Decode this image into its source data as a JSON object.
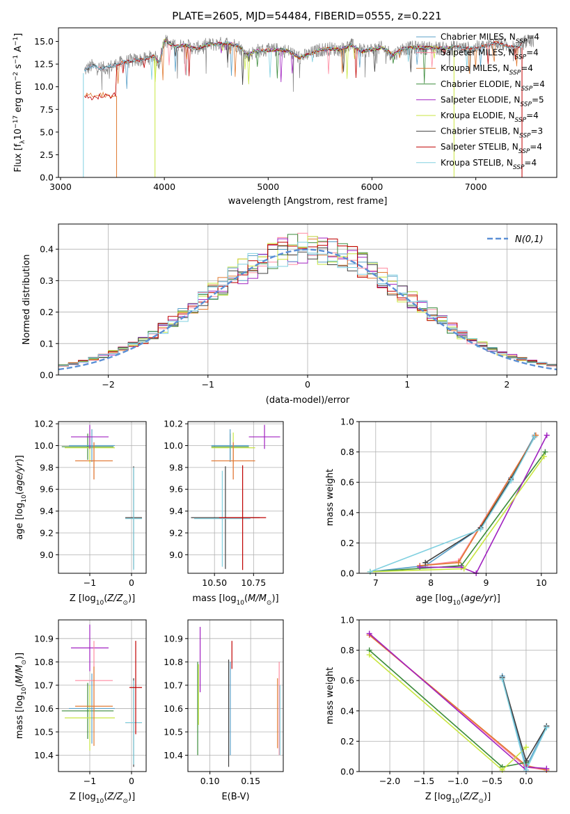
{
  "title": "PLATE=2605, MJD=54484, FIBERID=0555, z=0.221",
  "chart_data": [
    {
      "id": "spectrum",
      "type": "line",
      "xlabel": "wavelength [Angstrom, rest frame]",
      "ylabel": "Flux [f_λ 10^-17 erg cm^-2 s^-1 A^-1]",
      "xlim": [
        2980,
        7780
      ],
      "ylim": [
        0,
        16.5
      ],
      "xticks": [
        3000,
        4000,
        5000,
        6000,
        7000
      ],
      "yticks": [
        0.0,
        2.5,
        5.0,
        7.5,
        10.0,
        12.5,
        15.0
      ],
      "grid": false,
      "legend_position": "top-right",
      "data_color": "#808080",
      "data": {
        "x": [
          3200,
          3230,
          3300,
          3400,
          3500,
          3600,
          3700,
          3800,
          3900,
          3950,
          4000,
          4100,
          4200,
          4300,
          4400,
          4500,
          4600,
          4700,
          4800,
          4900,
          5000,
          5100,
          5200,
          5300,
          5400,
          5500,
          5600,
          5700,
          5800,
          5900,
          6000,
          6100,
          6200,
          6300,
          6400,
          6500,
          6600,
          6700,
          6800,
          6900,
          7000,
          7100,
          7200,
          7300,
          7400,
          7500,
          7550
        ],
        "y": [
          0,
          11.8,
          12.3,
          12.0,
          12.3,
          12.7,
          12.9,
          13.0,
          13.4,
          12.6,
          15.2,
          14.4,
          14.6,
          14.2,
          14.6,
          14.7,
          14.8,
          14.6,
          13.5,
          14.0,
          14.0,
          14.1,
          13.9,
          13.2,
          13.6,
          14.1,
          14.2,
          14.1,
          14.6,
          13.9,
          14.1,
          14.3,
          13.5,
          14.2,
          14.3,
          14.3,
          14.3,
          14.2,
          14.4,
          14.2,
          14.3,
          14.5,
          14.9,
          14.5,
          14.3,
          15.2,
          15.0
        ]
      },
      "series": [
        {
          "name": "Chabrier MILES, N_SSP=4",
          "color": "#5aa0c8"
        },
        {
          "name": "Salpeter MILES, N_SSP=4",
          "color": "#ff8aa0"
        },
        {
          "name": "Kroupa MILES, N_SSP=4",
          "color": "#e07a30"
        },
        {
          "name": "Chabrier ELODIE, N_SSP=4",
          "color": "#3a8a3a"
        },
        {
          "name": "Salpeter ELODIE, N_SSP=5",
          "color": "#a020c0"
        },
        {
          "name": "Kroupa ELODIE, N_SSP=4",
          "color": "#c8e640"
        },
        {
          "name": "Chabrier STELIB, N_SSP=3",
          "color": "#404040"
        },
        {
          "name": "Salpeter STELIB, N_SSP=4",
          "color": "#c00000"
        },
        {
          "name": "Kroupa STELIB, N_SSP=4",
          "color": "#80d0e0"
        }
      ],
      "annotations": {
        "miles_cutoff": 3540,
        "elodie_range": [
          3900,
          6800
        ],
        "stelib_range": [
          3200,
          7450
        ]
      }
    },
    {
      "id": "residuals",
      "type": "line",
      "xlabel": "(data-model)/error",
      "ylabel": "Normed distribution",
      "xlim": [
        -2.5,
        2.5
      ],
      "ylim": [
        0,
        0.48
      ],
      "xticks": [
        -2,
        -1,
        0,
        1,
        2
      ],
      "yticks": [
        0.0,
        0.1,
        0.2,
        0.3,
        0.4
      ],
      "grid": true,
      "legend_position": "top-right",
      "legend_label": "N(0,1)",
      "gauss_color": "#5b8fd6",
      "bin_width": 0.1,
      "series_colors": [
        "#5aa0c8",
        "#ff8aa0",
        "#e07a30",
        "#3a8a3a",
        "#a020c0",
        "#c8e640",
        "#404040",
        "#c00000",
        "#80d0e0"
      ]
    },
    {
      "id": "age-vs-Z",
      "type": "scatter",
      "xlabel": "Z [log10(Z/Z_sun)]",
      "ylabel": "age [log10(age/yr)]",
      "xlim": [
        -1.75,
        0.35
      ],
      "ylim": [
        8.83,
        10.22
      ],
      "xticks": [
        -1,
        0
      ],
      "yticks": [
        9.0,
        9.2,
        9.4,
        9.6,
        9.8,
        10.0,
        10.2
      ],
      "grid": true,
      "points": [
        {
          "x": -1.05,
          "y": 9.99,
          "xerr": 0.62,
          "yerr": 0.12,
          "c": "#3a8a3a"
        },
        {
          "x": -1.0,
          "y": 9.98,
          "xerr": 0.6,
          "yerr": 0.14,
          "c": "#c8e640"
        },
        {
          "x": -0.95,
          "y": 10.0,
          "xerr": 0.55,
          "yerr": 0.15,
          "c": "#5aa0c8"
        },
        {
          "x": -1.0,
          "y": 10.08,
          "xerr": 0.45,
          "yerr": 0.11,
          "c": "#a020c0"
        },
        {
          "x": -0.9,
          "y": 9.86,
          "xerr": 0.45,
          "yerr": 0.17,
          "c": "#ff8aa0"
        },
        {
          "x": -0.9,
          "y": 9.86,
          "xerr": 0.45,
          "yerr": 0.17,
          "c": "#e07a30"
        },
        {
          "x": 0.05,
          "y": 9.34,
          "xerr": 0.2,
          "yerr": 0.47,
          "c": "#404040"
        },
        {
          "x": 0.05,
          "y": 9.33,
          "xerr": 0.2,
          "yerr": 0.47,
          "c": "#80d0e0"
        }
      ]
    },
    {
      "id": "age-vs-mass",
      "type": "scatter",
      "xlabel": "mass [log10(M/M_sun)]",
      "ylabel": "",
      "xlim": [
        10.33,
        10.94
      ],
      "ylim": [
        8.83,
        10.22
      ],
      "xticks": [
        10.5,
        10.75
      ],
      "yticks": [
        9.0,
        9.2,
        9.4,
        9.6,
        9.8,
        10.0,
        10.2
      ],
      "grid": true,
      "points": [
        {
          "x": 10.6,
          "y": 9.99,
          "xerr": 0.12,
          "yerr": 0.12,
          "c": "#3a8a3a"
        },
        {
          "x": 10.62,
          "y": 9.98,
          "xerr": 0.14,
          "yerr": 0.14,
          "c": "#c8e640"
        },
        {
          "x": 10.6,
          "y": 10.0,
          "xerr": 0.12,
          "yerr": 0.15,
          "c": "#5aa0c8"
        },
        {
          "x": 10.82,
          "y": 10.08,
          "xerr": 0.1,
          "yerr": 0.11,
          "c": "#a020c0"
        },
        {
          "x": 10.62,
          "y": 9.86,
          "xerr": 0.14,
          "yerr": 0.17,
          "c": "#ff8aa0"
        },
        {
          "x": 10.62,
          "y": 9.86,
          "xerr": 0.14,
          "yerr": 0.17,
          "c": "#e07a30"
        },
        {
          "x": 10.57,
          "y": 9.34,
          "xerr": 0.22,
          "yerr": 0.47,
          "c": "#404040"
        },
        {
          "x": 10.55,
          "y": 9.33,
          "xerr": 0.18,
          "yerr": 0.44,
          "c": "#80d0e0"
        },
        {
          "x": 10.68,
          "y": 9.34,
          "xerr": 0.15,
          "yerr": 0.48,
          "c": "#c00000"
        }
      ]
    },
    {
      "id": "weight-vs-age",
      "type": "line",
      "xlabel": "age [log10(age/yr)]",
      "ylabel": "mass weight",
      "xlim": [
        6.7,
        10.28
      ],
      "ylim": [
        0,
        1.0
      ],
      "xticks": [
        7,
        8,
        9,
        10
      ],
      "yticks": [
        0.0,
        0.2,
        0.4,
        0.6,
        0.8,
        1.0
      ],
      "grid": true,
      "series": [
        {
          "c": "#5aa0c8",
          "x": [
            6.9,
            7.9,
            8.9,
            9.45,
            9.88
          ],
          "y": [
            0.01,
            0.05,
            0.3,
            0.63,
            0.91
          ]
        },
        {
          "c": "#ff8aa0",
          "x": [
            7.8,
            8.5,
            9.9
          ],
          "y": [
            0.05,
            0.08,
            0.91
          ]
        },
        {
          "c": "#e07a30",
          "x": [
            7.8,
            8.5,
            9.9
          ],
          "y": [
            0.05,
            0.07,
            0.91
          ]
        },
        {
          "c": "#3a8a3a",
          "x": [
            6.9,
            8.55,
            10.07
          ],
          "y": [
            0.01,
            0.05,
            0.8
          ]
        },
        {
          "c": "#a020c0",
          "x": [
            7.8,
            8.55,
            8.82,
            10.1
          ],
          "y": [
            0.04,
            0.04,
            0.0,
            0.91
          ]
        },
        {
          "c": "#c8e640",
          "x": [
            6.9,
            8.6,
            10.05
          ],
          "y": [
            0.01,
            0.03,
            0.77
          ]
        },
        {
          "c": "#404040",
          "x": [
            7.9,
            8.9,
            9.45,
            9.88
          ],
          "y": [
            0.07,
            0.3,
            0.62,
            0.9
          ]
        },
        {
          "c": "#80d0e0",
          "x": [
            6.9,
            8.9,
            9.45,
            9.88
          ],
          "y": [
            0.01,
            0.29,
            0.61,
            0.9
          ]
        }
      ]
    },
    {
      "id": "mass-vs-Z",
      "type": "scatter",
      "xlabel": "Z [log10(Z/Z_sun)]",
      "ylabel": "mass [log10(M/M_sun)]",
      "xlim": [
        -1.75,
        0.35
      ],
      "ylim": [
        10.33,
        10.98
      ],
      "xticks": [
        -1,
        0
      ],
      "yticks": [
        10.4,
        10.5,
        10.6,
        10.7,
        10.8,
        10.9
      ],
      "grid": true,
      "points": [
        {
          "x": -1.05,
          "y": 10.59,
          "xerr": 0.62,
          "yerr": 0.12,
          "c": "#3a8a3a"
        },
        {
          "x": -1.0,
          "y": 10.56,
          "xerr": 0.6,
          "yerr": 0.14,
          "c": "#c8e640"
        },
        {
          "x": -0.95,
          "y": 10.6,
          "xerr": 0.55,
          "yerr": 0.15,
          "c": "#5aa0c8"
        },
        {
          "x": -1.0,
          "y": 10.86,
          "xerr": 0.45,
          "yerr": 0.1,
          "c": "#a020c0"
        },
        {
          "x": -0.9,
          "y": 10.72,
          "xerr": 0.45,
          "yerr": 0.17,
          "c": "#ff8aa0"
        },
        {
          "x": -0.9,
          "y": 10.61,
          "xerr": 0.45,
          "yerr": 0.17,
          "c": "#e07a30"
        },
        {
          "x": 0.05,
          "y": 10.54,
          "xerr": 0.2,
          "yerr": 0.19,
          "c": "#404040"
        },
        {
          "x": 0.05,
          "y": 10.54,
          "xerr": 0.2,
          "yerr": 0.18,
          "c": "#80d0e0"
        },
        {
          "x": 0.1,
          "y": 10.69,
          "xerr": 0.15,
          "yerr": 0.2,
          "c": "#c00000"
        }
      ]
    },
    {
      "id": "mass-vs-EBV",
      "type": "scatter",
      "xlabel": "E(B-V)",
      "ylabel": "",
      "xlim": [
        0.073,
        0.19
      ],
      "ylim": [
        10.33,
        10.98
      ],
      "xticks": [
        0.1,
        0.15
      ],
      "yticks": [
        10.4,
        10.5,
        10.6,
        10.7,
        10.8,
        10.9
      ],
      "grid": true,
      "points": [
        {
          "x": 0.085,
          "y": 10.6,
          "yerr": 0.2,
          "c": "#3a8a3a"
        },
        {
          "x": 0.086,
          "y": 10.66,
          "yerr": 0.13,
          "c": "#c8e640"
        },
        {
          "x": 0.088,
          "y": 10.81,
          "yerr": 0.14,
          "c": "#a020c0"
        },
        {
          "x": 0.123,
          "y": 10.58,
          "yerr": 0.23,
          "c": "#404040"
        },
        {
          "x": 0.125,
          "y": 10.6,
          "yerr": 0.2,
          "c": "#5aa0c8"
        },
        {
          "x": 0.127,
          "y": 10.83,
          "yerr": 0.06,
          "c": "#c00000"
        },
        {
          "x": 0.183,
          "y": 10.58,
          "yerr": 0.15,
          "c": "#e07a30"
        },
        {
          "x": 0.185,
          "y": 10.6,
          "yerr": 0.2,
          "c": "#ff8aa0"
        },
        {
          "x": 0.186,
          "y": 10.55,
          "yerr": 0.15,
          "c": "#80d0e0"
        }
      ]
    },
    {
      "id": "weight-vs-Z",
      "type": "line",
      "xlabel": "Z [log10(Z/Z_sun)]",
      "ylabel": "mass weight",
      "xlim": [
        -2.45,
        0.45
      ],
      "ylim": [
        0,
        1.0
      ],
      "xticks": [
        -2.0,
        -1.5,
        -1.0,
        -0.5,
        0.0
      ],
      "yticks": [
        0.0,
        0.2,
        0.4,
        0.6,
        0.8,
        1.0
      ],
      "grid": true,
      "series": [
        {
          "c": "#5aa0c8",
          "x": [
            -0.35,
            0.0,
            0.3
          ],
          "y": [
            0.63,
            0.03,
            0.3
          ]
        },
        {
          "c": "#ff8aa0",
          "x": [
            -2.3,
            0.0,
            0.3
          ],
          "y": [
            0.9,
            0.03,
            0.01
          ]
        },
        {
          "c": "#e07a30",
          "x": [
            -2.3,
            0.0,
            0.3
          ],
          "y": [
            0.9,
            0.04,
            0.01
          ]
        },
        {
          "c": "#3a8a3a",
          "x": [
            -2.3,
            -0.35,
            0.0
          ],
          "y": [
            0.8,
            0.03,
            0.06
          ]
        },
        {
          "c": "#a020c0",
          "x": [
            -2.3,
            0.0,
            0.0,
            0.3
          ],
          "y": [
            0.91,
            0.01,
            0.03,
            0.02
          ]
        },
        {
          "c": "#c8e640",
          "x": [
            -2.3,
            -0.35,
            0.0
          ],
          "y": [
            0.77,
            0.01,
            0.16
          ]
        },
        {
          "c": "#404040",
          "x": [
            -0.35,
            0.0,
            0.3
          ],
          "y": [
            0.62,
            0.07,
            0.3
          ]
        },
        {
          "c": "#80d0e0",
          "x": [
            -0.35,
            0.0,
            0.3
          ],
          "y": [
            0.61,
            0.01,
            0.29
          ]
        }
      ]
    }
  ]
}
